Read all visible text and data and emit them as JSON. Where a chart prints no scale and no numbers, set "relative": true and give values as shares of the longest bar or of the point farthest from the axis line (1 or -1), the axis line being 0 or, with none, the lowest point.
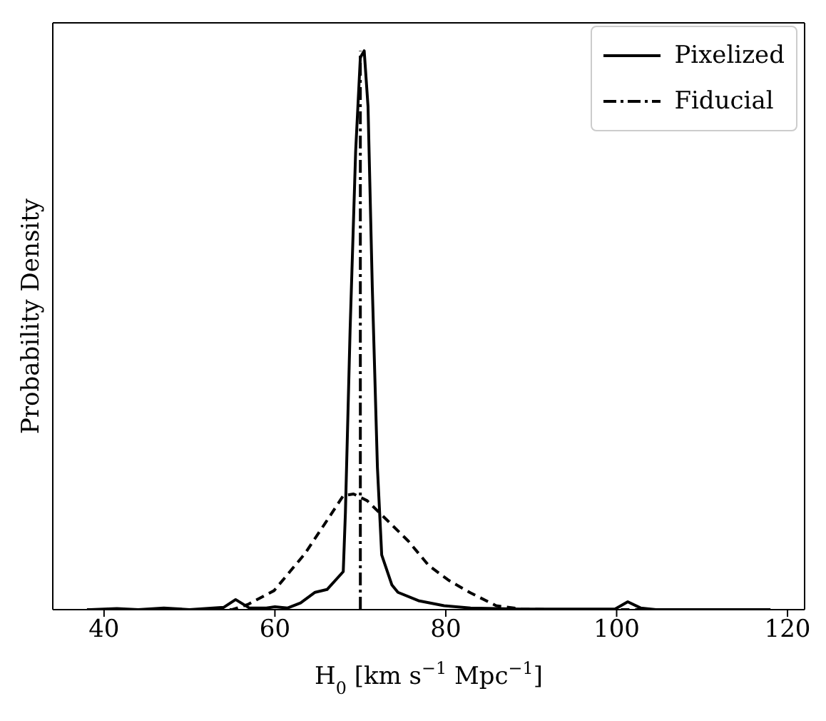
{
  "chart_data": {
    "type": "line",
    "relative": true,
    "xlabel": "H$_{0}$ [km s$^{−1}$ Mpc$^{−1}$]",
    "ylabel": "Probability Density",
    "xlim": [
      34,
      122
    ],
    "xticks": [
      40,
      60,
      80,
      100,
      120
    ],
    "legend": "top right",
    "marker": "none",
    "series": [
      {
        "color": "#000000",
        "line_style": "dashed",
        "x": [
          38,
          50,
          55,
          56.8,
          59.9,
          63.5,
          65.9,
          68,
          69.2,
          70.8,
          73.2,
          75.6,
          78,
          80.4,
          82.9,
          85.9,
          88.9,
          92,
          100,
          118
        ],
        "values": [
          0,
          0,
          0,
          0.009,
          0.034,
          0.1,
          0.155,
          0.204,
          0.207,
          0.195,
          0.159,
          0.123,
          0.079,
          0.052,
          0.03,
          0.007,
          0.001,
          0,
          0,
          0
        ]
      },
      {
        "name": "Pixelized",
        "color": "#000000",
        "line_style": "solid",
        "x": [
          38.4,
          41.5,
          44,
          47,
          50,
          54,
          55.4,
          57,
          59,
          60,
          61.5,
          63,
          64.7,
          66.1,
          68,
          68.25,
          68.8,
          69.45,
          70,
          70.45,
          70.9,
          71.4,
          72,
          72.5,
          73.7,
          74.4,
          76.8,
          79.8,
          82.9,
          88.9,
          99.8,
          101.3,
          102.8,
          104.6,
          118
        ],
        "values": [
          0,
          0.002,
          0,
          0.003,
          0,
          0.004,
          0.018,
          0.003,
          0.003,
          0.005,
          0.003,
          0.012,
          0.031,
          0.036,
          0.068,
          0.173,
          0.5,
          0.82,
          0.988,
          1,
          0.9,
          0.576,
          0.254,
          0.098,
          0.044,
          0.031,
          0.016,
          0.007,
          0.003,
          0.001,
          0.001,
          0.014,
          0.003,
          0,
          0
        ]
      },
      {
        "name": "Fiducial",
        "color": "#000000",
        "line_style": "dashdot",
        "x": [
          70,
          70
        ],
        "values": [
          0,
          1
        ]
      }
    ]
  }
}
